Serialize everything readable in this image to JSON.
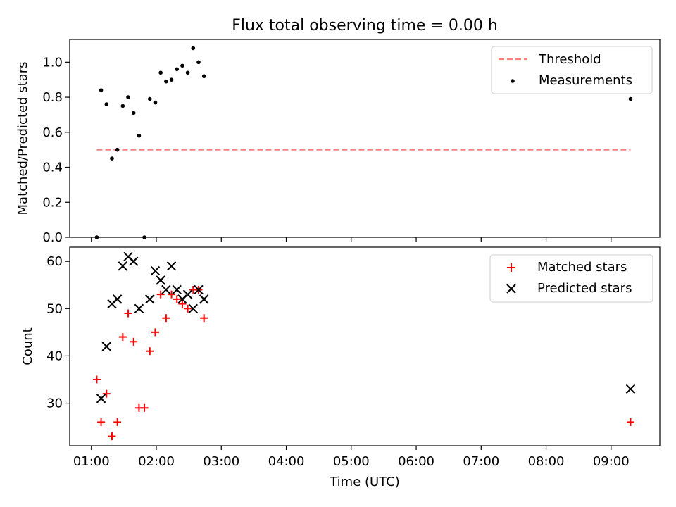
{
  "figure": {
    "title": "Flux total observing time = 0.00 h",
    "xlabel": "Time (UTC)",
    "x_ticks": [
      "01:00",
      "02:00",
      "03:00",
      "04:00",
      "05:00",
      "06:00",
      "07:00",
      "08:00",
      "09:00"
    ]
  },
  "colors": {
    "threshold": "#ff8080",
    "measurements": "#000000",
    "matched": "#ff0000",
    "predicted": "#000000"
  },
  "chart_data": [
    {
      "type": "scatter",
      "title": "Flux total observing time = 0.00 h",
      "ylabel": "Matched/Predicted stars",
      "xlim": [
        "00:40",
        "09:45"
      ],
      "ylim": [
        0,
        1.13
      ],
      "y_ticks": [
        "0.0",
        "0.2",
        "0.4",
        "0.6",
        "0.8",
        "1.0"
      ],
      "legend": {
        "placement": "top-right",
        "entries": [
          {
            "label": "Threshold",
            "marker": "dashed-line"
          },
          {
            "label": "Measurements",
            "marker": "dot"
          }
        ]
      },
      "threshold_line": {
        "name": "Threshold",
        "y": 0.5,
        "x_start": "01:05",
        "x_end": "09:18"
      },
      "series": [
        {
          "name": "Measurements",
          "marker": "dot",
          "points": [
            {
              "x": "01:05",
              "y": 0.0
            },
            {
              "x": "01:09",
              "y": 0.84
            },
            {
              "x": "01:14",
              "y": 0.76
            },
            {
              "x": "01:19",
              "y": 0.45
            },
            {
              "x": "01:24",
              "y": 0.5
            },
            {
              "x": "01:29",
              "y": 0.75
            },
            {
              "x": "01:34",
              "y": 0.8
            },
            {
              "x": "01:39",
              "y": 0.71
            },
            {
              "x": "01:44",
              "y": 0.58
            },
            {
              "x": "01:49",
              "y": 0.0
            },
            {
              "x": "01:54",
              "y": 0.79
            },
            {
              "x": "01:59",
              "y": 0.77
            },
            {
              "x": "02:04",
              "y": 0.94
            },
            {
              "x": "02:09",
              "y": 0.89
            },
            {
              "x": "02:14",
              "y": 0.9
            },
            {
              "x": "02:19",
              "y": 0.96
            },
            {
              "x": "02:24",
              "y": 0.98
            },
            {
              "x": "02:29",
              "y": 0.94
            },
            {
              "x": "02:34",
              "y": 1.08
            },
            {
              "x": "02:39",
              "y": 1.0
            },
            {
              "x": "02:44",
              "y": 0.92
            },
            {
              "x": "09:18",
              "y": 0.79
            }
          ]
        }
      ]
    },
    {
      "type": "scatter",
      "ylabel": "Count",
      "xlabel": "Time (UTC)",
      "xlim": [
        "00:40",
        "09:45"
      ],
      "ylim": [
        21,
        63
      ],
      "y_ticks": [
        "30",
        "40",
        "50",
        "60"
      ],
      "legend": {
        "placement": "top-right",
        "entries": [
          {
            "label": "Matched stars",
            "marker": "plus"
          },
          {
            "label": "Predicted stars",
            "marker": "x"
          }
        ]
      },
      "series": [
        {
          "name": "Matched stars",
          "marker": "plus",
          "points": [
            {
              "x": "01:05",
              "y": 35
            },
            {
              "x": "01:09",
              "y": 26
            },
            {
              "x": "01:14",
              "y": 32
            },
            {
              "x": "01:19",
              "y": 23
            },
            {
              "x": "01:24",
              "y": 26
            },
            {
              "x": "01:29",
              "y": 44
            },
            {
              "x": "01:34",
              "y": 49
            },
            {
              "x": "01:39",
              "y": 43
            },
            {
              "x": "01:44",
              "y": 29
            },
            {
              "x": "01:49",
              "y": 29
            },
            {
              "x": "01:54",
              "y": 41
            },
            {
              "x": "01:59",
              "y": 45
            },
            {
              "x": "02:04",
              "y": 53
            },
            {
              "x": "02:09",
              "y": 48
            },
            {
              "x": "02:14",
              "y": 53
            },
            {
              "x": "02:19",
              "y": 52
            },
            {
              "x": "02:24",
              "y": 51
            },
            {
              "x": "02:29",
              "y": 50
            },
            {
              "x": "02:34",
              "y": 54
            },
            {
              "x": "02:39",
              "y": 54
            },
            {
              "x": "02:44",
              "y": 48
            },
            {
              "x": "09:18",
              "y": 26
            }
          ]
        },
        {
          "name": "Predicted stars",
          "marker": "x",
          "points": [
            {
              "x": "01:09",
              "y": 31
            },
            {
              "x": "01:14",
              "y": 42
            },
            {
              "x": "01:19",
              "y": 51
            },
            {
              "x": "01:24",
              "y": 52
            },
            {
              "x": "01:29",
              "y": 59
            },
            {
              "x": "01:34",
              "y": 61
            },
            {
              "x": "01:39",
              "y": 60
            },
            {
              "x": "01:44",
              "y": 50
            },
            {
              "x": "01:54",
              "y": 52
            },
            {
              "x": "01:59",
              "y": 58
            },
            {
              "x": "02:04",
              "y": 56
            },
            {
              "x": "02:09",
              "y": 54
            },
            {
              "x": "02:14",
              "y": 59
            },
            {
              "x": "02:19",
              "y": 54
            },
            {
              "x": "02:24",
              "y": 52
            },
            {
              "x": "02:29",
              "y": 53
            },
            {
              "x": "02:34",
              "y": 50
            },
            {
              "x": "02:39",
              "y": 54
            },
            {
              "x": "02:44",
              "y": 52
            },
            {
              "x": "09:18",
              "y": 33
            }
          ]
        }
      ]
    }
  ]
}
